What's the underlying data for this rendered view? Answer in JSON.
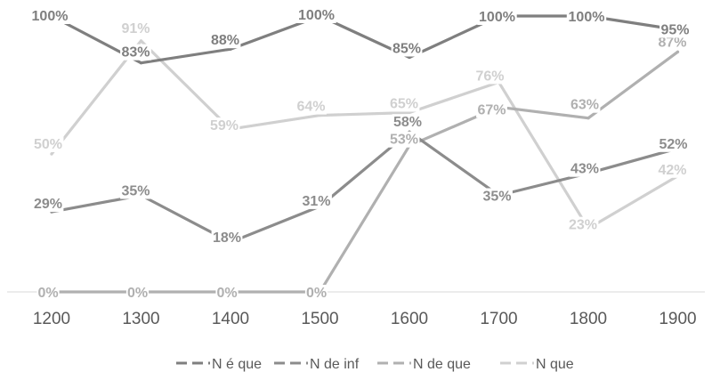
{
  "chart_data": {
    "type": "line",
    "title": "",
    "xlabel": "",
    "ylabel": "",
    "categories": [
      "1200",
      "1300",
      "1400",
      "1500",
      "1600",
      "1700",
      "1800",
      "1900"
    ],
    "ylim": [
      0,
      100
    ],
    "grid": false,
    "legend_position": "bottom",
    "series": [
      {
        "name": "N é que",
        "color": "#7f7f7f",
        "values": [
          100,
          83,
          88,
          100,
          85,
          100,
          100,
          95
        ],
        "labels": [
          "100%",
          "83%",
          "88%",
          "100%",
          "85%",
          "100%",
          "100%",
          "95%"
        ]
      },
      {
        "name": "N de inf",
        "color": "#8c8c8c",
        "values": [
          29,
          35,
          18,
          31,
          58,
          35,
          43,
          52
        ],
        "labels": [
          "29%",
          "35%",
          "18%",
          "31%",
          "58%",
          "35%",
          "43%",
          "52%"
        ]
      },
      {
        "name": "N de que",
        "color": "#b0b0b0",
        "values": [
          0,
          0,
          0,
          0,
          53,
          67,
          63,
          87
        ],
        "labels": [
          "0%",
          "0%",
          "0%",
          "0%",
          "53%",
          "67%",
          "63%",
          "87%"
        ]
      },
      {
        "name": "N que",
        "color": "#d0d0d0",
        "values": [
          50,
          91,
          59,
          64,
          65,
          76,
          23,
          42
        ],
        "labels": [
          "50%",
          "91%",
          "59%",
          "64%",
          "65%",
          "76%",
          "23%",
          "42%"
        ]
      }
    ]
  }
}
